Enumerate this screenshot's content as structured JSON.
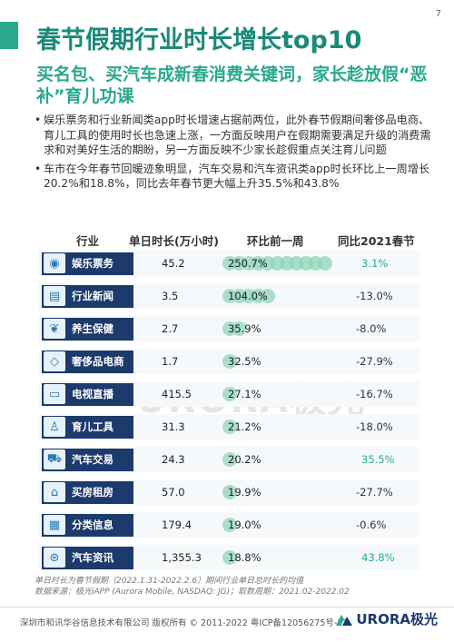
{
  "page_number": "7",
  "title": "春节假期行业时长增长top10",
  "subtitle": "买名包、买汽车成新春消费关键词，家长趁放假“恶补”育儿功课",
  "bullets": [
    "娱乐票务和行业新闻类app时长增速占据前两位，此外春节假期间奢侈品电商、育儿工具的使用时长也急速上涨，一方面反映用户在假期需要满足升级的消费需求和对美好生活的期盼，另一方面反映不少家长趁假重点关注育儿问题",
    "车市在今年春节回暖迹象明显，汽车交易和汽车资讯类app时长环比上一周增长20.2%和18.8%，同比去年春节更大幅上升35.5%和43.8%"
  ],
  "table": {
    "headers": [
      "行业",
      "单日时长(万小时)",
      "环比前一周",
      "同比2021春节"
    ],
    "rows": [
      {
        "industry": "娱乐票务",
        "icon": "ticket-icon",
        "glyph": "◉",
        "hours": "45.2",
        "wow": "250.7%",
        "wow_value": 2.507,
        "yoy": "3.1%",
        "yoy_positive": true
      },
      {
        "industry": "行业新闻",
        "icon": "news-icon",
        "glyph": "▤",
        "hours": "3.5",
        "wow": "104.0%",
        "wow_value": 1.04,
        "yoy": "-13.0%",
        "yoy_positive": false
      },
      {
        "industry": "养生保健",
        "icon": "leaf-icon",
        "glyph": "❦",
        "hours": "2.7",
        "wow": "35.9%",
        "wow_value": 0.359,
        "yoy": "-8.0%",
        "yoy_positive": false
      },
      {
        "industry": "奢侈品电商",
        "icon": "diamond-icon",
        "glyph": "◇",
        "hours": "1.7",
        "wow": "32.5%",
        "wow_value": 0.325,
        "yoy": "-27.9%",
        "yoy_positive": false
      },
      {
        "industry": "电视直播",
        "icon": "tv-icon",
        "glyph": "▭",
        "hours": "415.5",
        "wow": "27.1%",
        "wow_value": 0.271,
        "yoy": "-16.7%",
        "yoy_positive": false
      },
      {
        "industry": "育儿工具",
        "icon": "baby-bottle-icon",
        "glyph": "♙",
        "hours": "31.3",
        "wow": "21.2%",
        "wow_value": 0.212,
        "yoy": "-18.0%",
        "yoy_positive": false
      },
      {
        "industry": "汽车交易",
        "icon": "car-icon",
        "glyph": "⛟",
        "hours": "24.3",
        "wow": "20.2%",
        "wow_value": 0.202,
        "yoy": "35.5%",
        "yoy_positive": true
      },
      {
        "industry": "买房租房",
        "icon": "house-icon",
        "glyph": "⌂",
        "hours": "57.0",
        "wow": "19.9%",
        "wow_value": 0.199,
        "yoy": "-27.7%",
        "yoy_positive": false
      },
      {
        "industry": "分类信息",
        "icon": "grid-icon",
        "glyph": "▦",
        "hours": "179.4",
        "wow": "19.0%",
        "wow_value": 0.19,
        "yoy": "-0.6%",
        "yoy_positive": false
      },
      {
        "industry": "汽车资讯",
        "icon": "steering-wheel-icon",
        "glyph": "⊛",
        "hours": "1,355.3",
        "wow": "18.8%",
        "wow_value": 0.188,
        "yoy": "43.8%",
        "yoy_positive": true
      }
    ]
  },
  "footnote_1": "单日时长为春节假期（2022.1.31-2022.2.6）期间行业单日总时长的均值",
  "footnote_2": "数据来源：极光iAPP (Aurora Mobile, NASDAQ: JG)；取数周期：2021.02-2022.02",
  "footer": "深圳市和讯华谷信息技术有限公司 版权所有 © 2011-2022 粤ICP备12056275号-13",
  "brand": "URORA极光",
  "watermark": "URORA极光",
  "colors": {
    "title": "#1a8a78",
    "accent": "#2aa88f",
    "label_bar": "#1c3a6b",
    "positive": "#2aa88f",
    "negative": "#333333",
    "dot": "#8fd4b8"
  }
}
